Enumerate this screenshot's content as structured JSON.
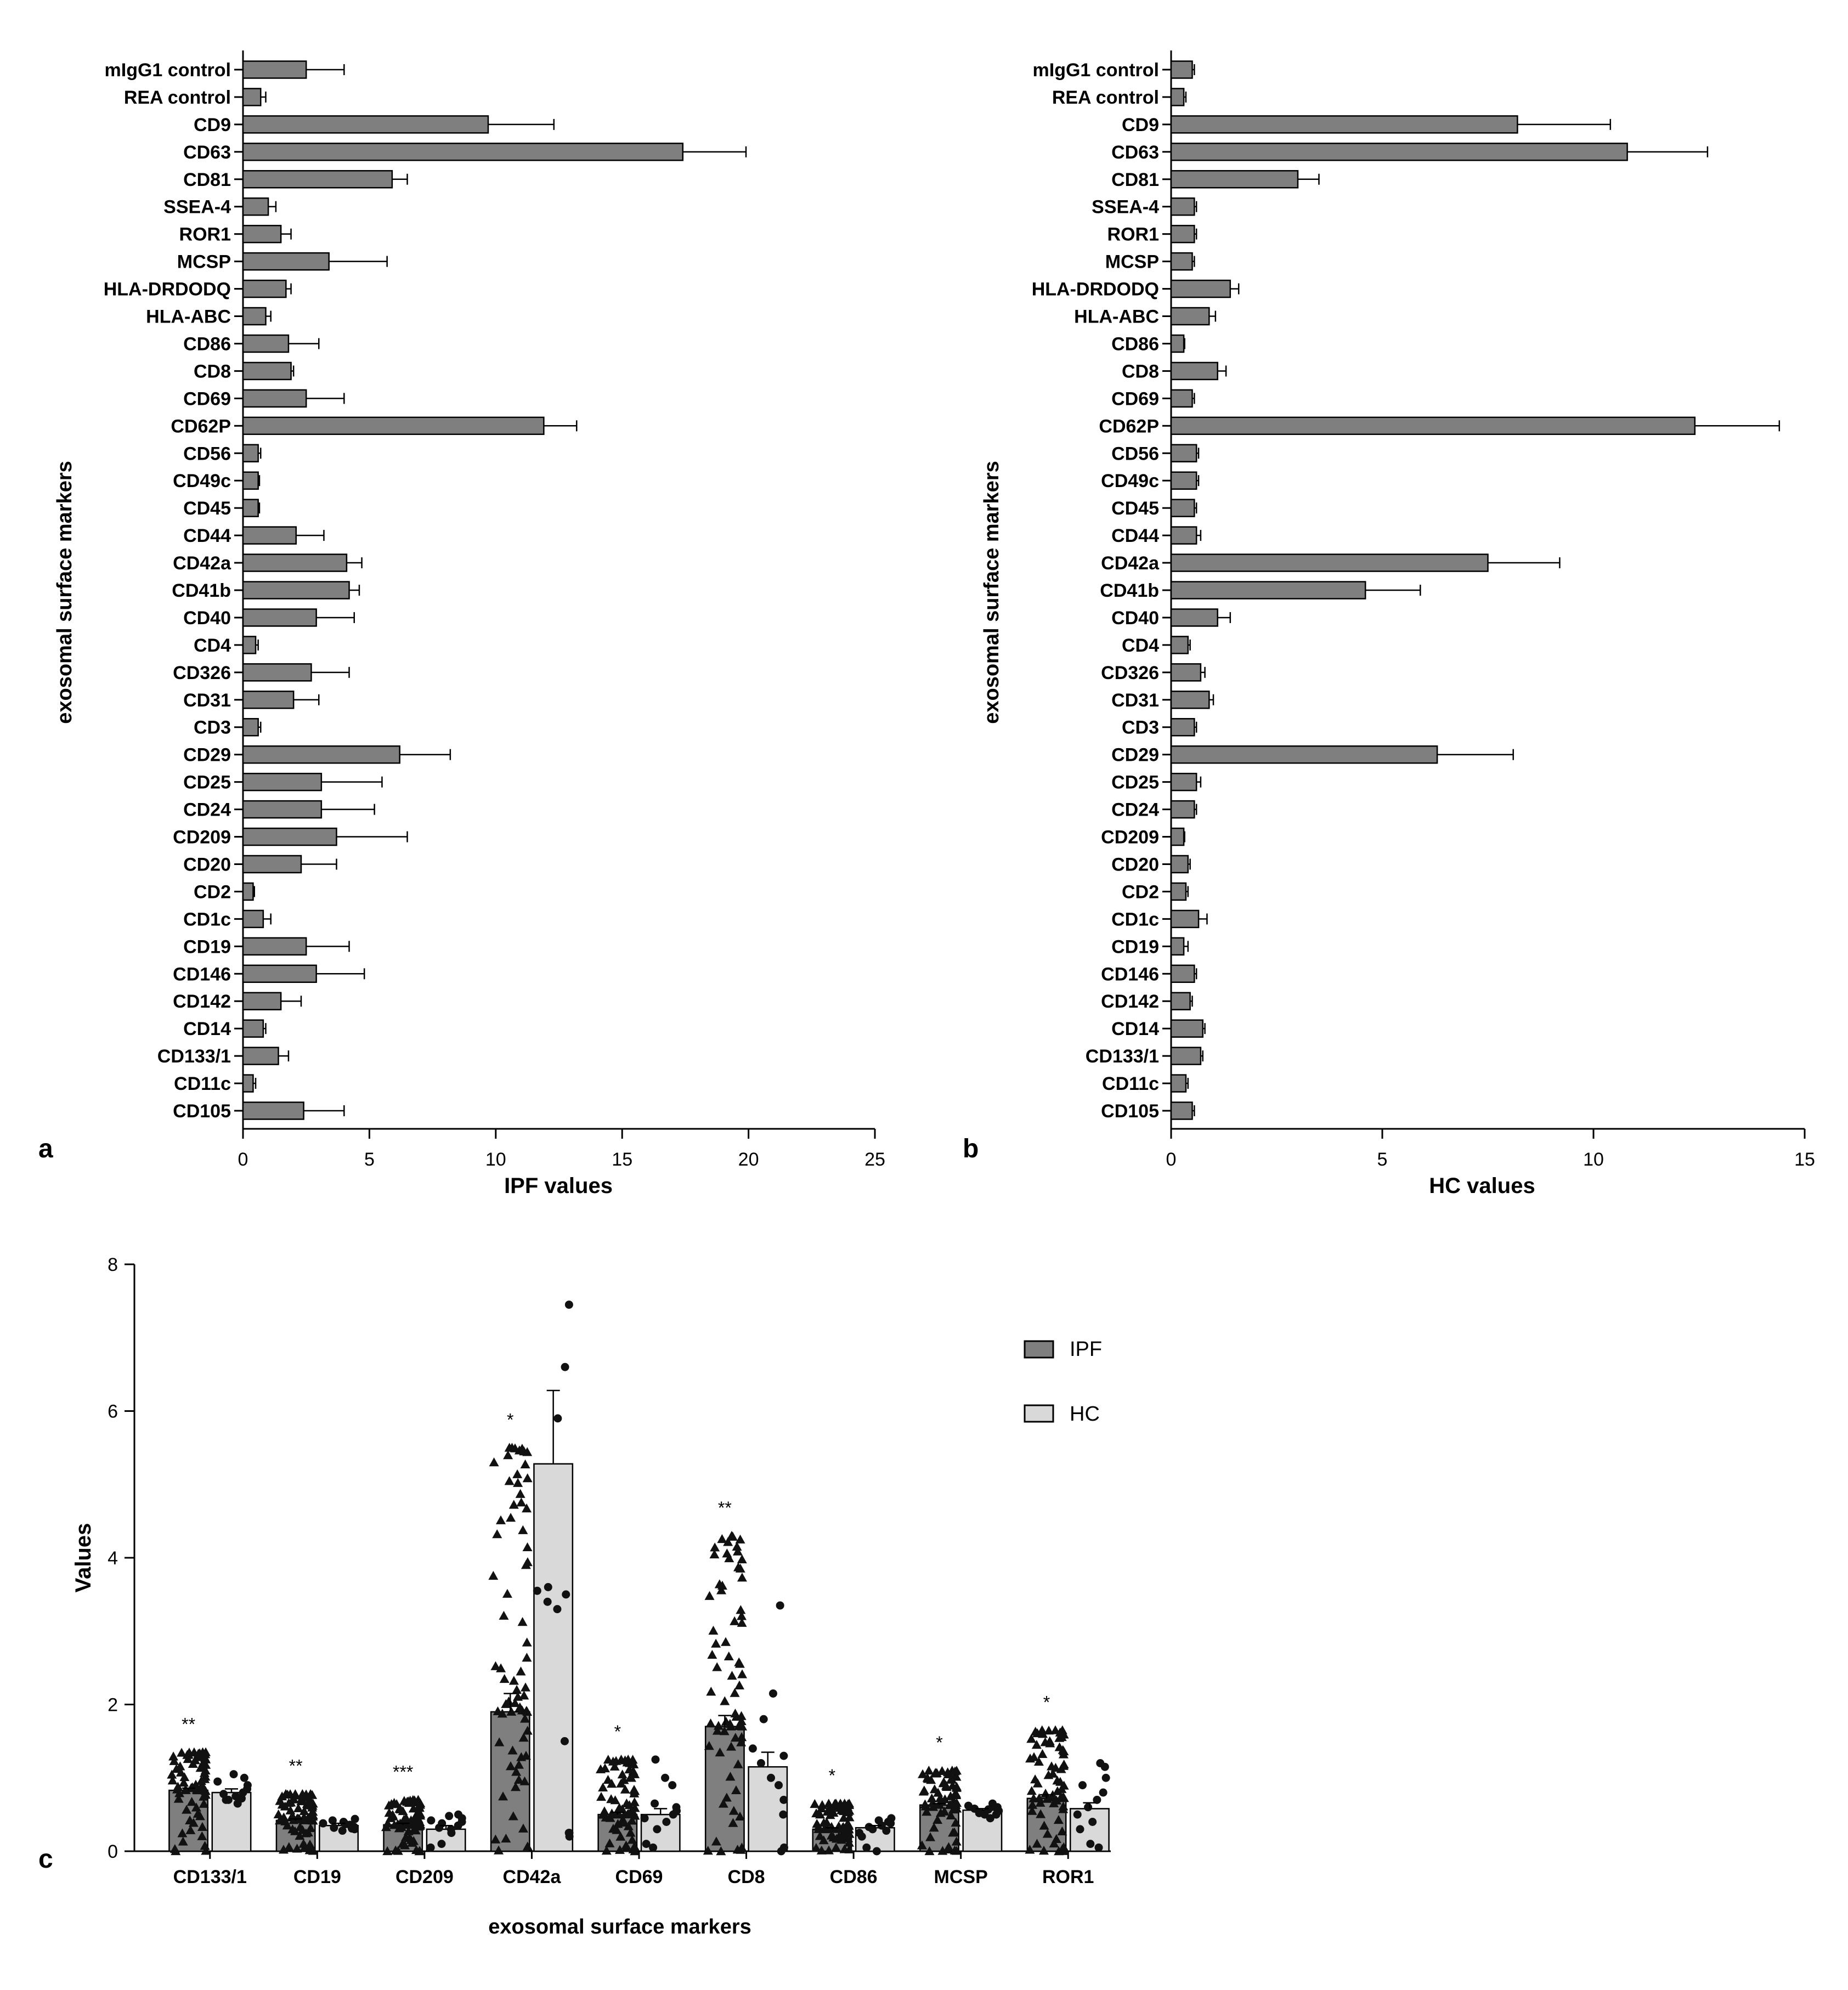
{
  "colors": {
    "ipf_fill": "#7f7f7f",
    "hc_fill": "#d9d9d9",
    "axis": "#000000",
    "points": "#111111"
  },
  "chart_data": [
    {
      "id": "panel-a",
      "panel_label": "a",
      "type": "bar",
      "orientation": "horizontal",
      "xlabel": "IPF values",
      "ylabel": "exosomal surface markers",
      "xlim": [
        0,
        25
      ],
      "xticks": [
        0,
        5,
        10,
        15,
        20,
        25
      ],
      "categories": [
        "mIgG1 control",
        "REA control",
        "CD9",
        "CD63",
        "CD81",
        "SSEA-4",
        "ROR1",
        "MCSP",
        "HLA-DRDODQ",
        "HLA-ABC",
        "CD86",
        "CD8",
        "CD69",
        "CD62P",
        "CD56",
        "CD49c",
        "CD45",
        "CD44",
        "CD42a",
        "CD41b",
        "CD40",
        "CD4",
        "CD326",
        "CD31",
        "CD3",
        "CD29",
        "CD25",
        "CD24",
        "CD209",
        "CD20",
        "CD2",
        "CD1c",
        "CD19",
        "CD146",
        "CD142",
        "CD14",
        "CD133/1",
        "CD11c",
        "CD105"
      ],
      "values": [
        2.5,
        0.7,
        9.7,
        17.4,
        5.9,
        1.0,
        1.5,
        3.4,
        1.7,
        0.9,
        1.8,
        1.9,
        2.5,
        11.9,
        0.6,
        0.6,
        0.6,
        2.1,
        4.1,
        4.2,
        2.9,
        0.5,
        2.7,
        2.0,
        0.6,
        6.2,
        3.1,
        3.1,
        3.7,
        2.3,
        0.4,
        0.8,
        2.5,
        2.9,
        1.5,
        0.8,
        1.4,
        0.4,
        2.4
      ],
      "errors": [
        1.5,
        0.2,
        2.6,
        2.5,
        0.6,
        0.3,
        0.4,
        2.3,
        0.2,
        0.2,
        1.2,
        0.1,
        1.5,
        1.3,
        0.1,
        0.05,
        0.05,
        1.1,
        0.6,
        0.4,
        1.5,
        0.1,
        1.5,
        1.0,
        0.1,
        2.0,
        2.4,
        2.1,
        2.8,
        1.4,
        0.05,
        0.3,
        1.7,
        1.9,
        0.8,
        0.1,
        0.4,
        0.1,
        1.6
      ]
    },
    {
      "id": "panel-b",
      "panel_label": "b",
      "type": "bar",
      "orientation": "horizontal",
      "xlabel": "HC values",
      "ylabel": "exosomal surface markers",
      "xlim": [
        0,
        15
      ],
      "xticks": [
        0,
        5,
        10,
        15
      ],
      "categories": [
        "mIgG1 control",
        "REA control",
        "CD9",
        "CD63",
        "CD81",
        "SSEA-4",
        "ROR1",
        "MCSP",
        "HLA-DRDODQ",
        "HLA-ABC",
        "CD86",
        "CD8",
        "CD69",
        "CD62P",
        "CD56",
        "CD49c",
        "CD45",
        "CD44",
        "CD42a",
        "CD41b",
        "CD40",
        "CD4",
        "CD326",
        "CD31",
        "CD3",
        "CD29",
        "CD25",
        "CD24",
        "CD209",
        "CD20",
        "CD2",
        "CD1c",
        "CD19",
        "CD146",
        "CD142",
        "CD14",
        "CD133/1",
        "CD11c",
        "CD105"
      ],
      "values": [
        0.5,
        0.3,
        8.2,
        10.8,
        3.0,
        0.55,
        0.55,
        0.5,
        1.4,
        0.9,
        0.3,
        1.1,
        0.5,
        12.4,
        0.6,
        0.6,
        0.55,
        0.6,
        7.5,
        4.6,
        1.1,
        0.4,
        0.7,
        0.9,
        0.55,
        6.3,
        0.6,
        0.55,
        0.3,
        0.4,
        0.35,
        0.65,
        0.3,
        0.55,
        0.45,
        0.75,
        0.7,
        0.35,
        0.5
      ],
      "errors": [
        0.05,
        0.05,
        2.2,
        1.9,
        0.5,
        0.05,
        0.05,
        0.05,
        0.2,
        0.15,
        0.02,
        0.2,
        0.05,
        2.0,
        0.05,
        0.05,
        0.05,
        0.1,
        1.7,
        1.3,
        0.3,
        0.05,
        0.1,
        0.1,
        0.05,
        1.8,
        0.1,
        0.05,
        0.02,
        0.05,
        0.05,
        0.2,
        0.1,
        0.05,
        0.05,
        0.05,
        0.05,
        0.05,
        0.05
      ]
    },
    {
      "id": "panel-c",
      "panel_label": "c",
      "type": "bar",
      "orientation": "vertical",
      "xlabel": "exosomal surface markers",
      "ylabel": "Values",
      "ylim": [
        0,
        8
      ],
      "yticks": [
        0,
        2,
        4,
        6,
        8
      ],
      "categories": [
        "CD133/1",
        "CD19",
        "CD209",
        "CD42a",
        "CD69",
        "CD8",
        "CD86",
        "MCSP",
        "ROR1"
      ],
      "legend": [
        "IPF",
        "HC"
      ],
      "significance": [
        "**",
        "**",
        "***",
        "*",
        "*",
        "**",
        "*",
        "*",
        "*"
      ],
      "series": [
        {
          "name": "IPF",
          "values": [
            0.83,
            0.42,
            0.36,
            1.9,
            0.5,
            1.7,
            0.3,
            0.63,
            0.72
          ],
          "errors": [
            0.03,
            0.02,
            0.02,
            0.25,
            0.03,
            0.15,
            0.02,
            0.02,
            0.05
          ],
          "max": [
            1.35,
            0.78,
            0.7,
            5.5,
            1.25,
            4.3,
            0.65,
            1.1,
            1.65
          ]
        },
        {
          "name": "HC",
          "values": [
            0.8,
            0.35,
            0.3,
            5.28,
            0.5,
            1.15,
            0.32,
            0.56,
            0.58
          ],
          "errors": [
            0.05,
            0.03,
            0.05,
            1.0,
            0.08,
            0.2,
            0.03,
            0.02,
            0.08
          ],
          "max": [
            1.05,
            0.45,
            0.5,
            7.45,
            1.25,
            3.35,
            0.45,
            0.65,
            1.2
          ]
        }
      ],
      "hc_points": [
        [
          0.7,
          0.75,
          0.8,
          0.85,
          0.9,
          1.0,
          0.65,
          0.7,
          0.95,
          0.78,
          1.05,
          0.72
        ],
        [
          0.3,
          0.35,
          0.4,
          0.32,
          0.38,
          0.42,
          0.28,
          0.36,
          0.33,
          0.44,
          0.31,
          0.37
        ],
        [
          0.05,
          0.1,
          0.3,
          0.35,
          0.4,
          0.45,
          0.5,
          0.25,
          0.38,
          0.42,
          0.32,
          0.48
        ],
        [
          0.2,
          0.25,
          1.5,
          3.3,
          3.4,
          3.55,
          3.6,
          5.9,
          6.6,
          7.45,
          0.25,
          3.5
        ],
        [
          0.05,
          0.1,
          0.3,
          0.4,
          0.5,
          0.55,
          0.6,
          0.9,
          1.0,
          1.25,
          0.45,
          0.65
        ],
        [
          0.0,
          0.05,
          0.5,
          0.9,
          1.0,
          1.2,
          1.4,
          1.8,
          2.15,
          3.35,
          1.3,
          0.7
        ],
        [
          0.0,
          0.05,
          0.2,
          0.3,
          0.35,
          0.4,
          0.45,
          0.38,
          0.28,
          0.42,
          0.33,
          0.25
        ],
        [
          0.45,
          0.5,
          0.55,
          0.6,
          0.65,
          0.5,
          0.58,
          0.62,
          0.52,
          0.57,
          0.6,
          0.55
        ],
        [
          0.05,
          0.1,
          0.3,
          0.5,
          0.6,
          0.7,
          0.8,
          1.0,
          1.15,
          1.2,
          0.4,
          0.9
        ]
      ]
    }
  ]
}
